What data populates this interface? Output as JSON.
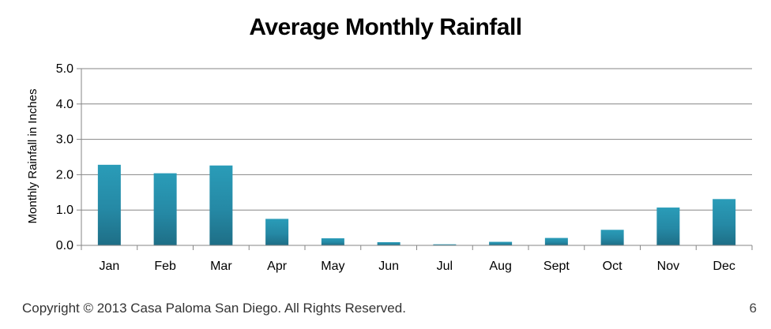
{
  "chart_data": {
    "type": "bar",
    "title": "Average Monthly Rainfall",
    "xlabel": "",
    "ylabel": "Monthly Rainfall in Inches",
    "categories": [
      "Jan",
      "Feb",
      "Mar",
      "Apr",
      "May",
      "Jun",
      "Jul",
      "Aug",
      "Sept",
      "Oct",
      "Nov",
      "Dec"
    ],
    "values": [
      2.28,
      2.04,
      2.26,
      0.75,
      0.2,
      0.09,
      0.03,
      0.1,
      0.21,
      0.44,
      1.07,
      1.31
    ],
    "ylim": [
      0,
      5
    ],
    "yticks": [
      "0.0",
      "1.0",
      "2.0",
      "3.0",
      "4.0",
      "5.0"
    ],
    "grid": true,
    "legend": "none",
    "colors": {
      "bar_top": "#2a9cb8",
      "bar_bottom": "#1e6e86",
      "grid": "#868686",
      "axis": "#868686"
    }
  },
  "footer": {
    "copyright": "Copyright © 2013 Casa Paloma San Diego. All Rights Reserved.",
    "page_number": "6"
  }
}
